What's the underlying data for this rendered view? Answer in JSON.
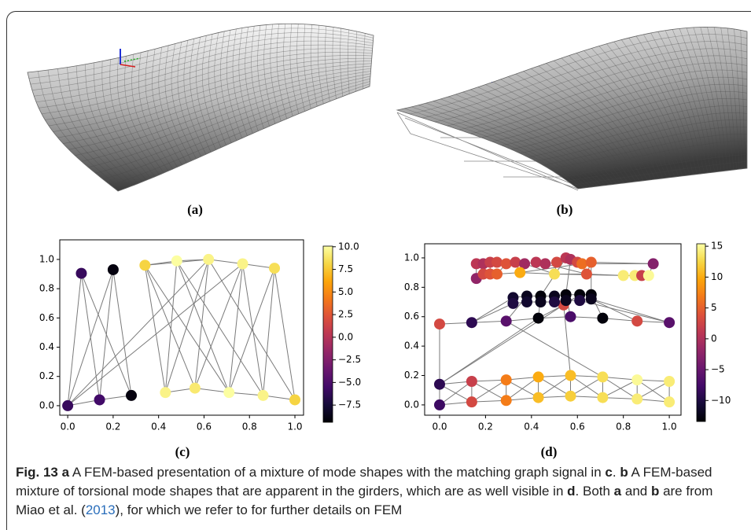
{
  "panels": {
    "a": {
      "label": "(a)"
    },
    "b": {
      "label": "(b)"
    }
  },
  "chart_data": [
    {
      "type": "graph",
      "label": "(c)",
      "x": [
        0.0,
        0.06,
        0.2,
        0.14,
        0.28,
        0.34,
        0.48,
        0.62,
        0.77,
        0.91,
        0.43,
        0.56,
        0.71,
        0.86,
        1.0
      ],
      "y": [
        0.0,
        0.905,
        0.93,
        0.04,
        0.07,
        0.96,
        0.99,
        1.0,
        0.97,
        0.94,
        0.09,
        0.12,
        0.09,
        0.07,
        0.04
      ],
      "values": [
        -6,
        -6,
        -9,
        -5.5,
        -9,
        8,
        10,
        9.5,
        9.5,
        8.5,
        9.5,
        9,
        10,
        9.5,
        8
      ],
      "edges": [
        [
          0,
          1
        ],
        [
          0,
          2
        ],
        [
          0,
          3
        ],
        [
          3,
          4
        ],
        [
          1,
          3
        ],
        [
          1,
          4
        ],
        [
          2,
          3
        ],
        [
          2,
          4
        ],
        [
          0,
          7
        ],
        [
          0,
          8
        ],
        [
          5,
          6
        ],
        [
          5,
          7
        ],
        [
          6,
          7
        ],
        [
          7,
          8
        ],
        [
          8,
          9
        ],
        [
          5,
          10
        ],
        [
          5,
          11
        ],
        [
          5,
          12
        ],
        [
          6,
          10
        ],
        [
          6,
          12
        ],
        [
          6,
          13
        ],
        [
          7,
          10
        ],
        [
          7,
          11
        ],
        [
          7,
          14
        ],
        [
          8,
          11
        ],
        [
          8,
          12
        ],
        [
          8,
          13
        ],
        [
          9,
          12
        ],
        [
          9,
          14
        ],
        [
          9,
          13
        ],
        [
          10,
          11
        ],
        [
          11,
          12
        ],
        [
          12,
          13
        ],
        [
          13,
          14
        ]
      ],
      "xlim": [
        -0.035,
        1.038
      ],
      "ylim": [
        -0.065,
        1.134
      ],
      "xticks": [
        {
          "value": 0,
          "label": "0.0"
        },
        0.2,
        0.4,
        0.6,
        0.8,
        {
          "value": 1,
          "label": "1.0"
        }
      ],
      "yticks": [
        {
          "value": 0,
          "label": "0.0"
        },
        0.2,
        0.4,
        0.6,
        0.8,
        {
          "value": 1,
          "label": "1.0"
        }
      ],
      "colorbar": {
        "colormap": "inferno",
        "lim": [
          -9.4,
          10.07
        ],
        "ticks": [
          {
            "value": 10,
            "label": "10.0"
          },
          7.5,
          {
            "value": 5,
            "label": "5.0"
          },
          2.5,
          {
            "value": 0,
            "label": "0.0"
          },
          {
            "value": -2.5,
            "label": "−2.5"
          },
          {
            "value": -5,
            "label": "−5.0"
          },
          {
            "value": -7.5,
            "label": "−7.5"
          }
        ]
      }
    },
    {
      "type": "graph",
      "label": "(d)",
      "x": [
        0,
        0,
        0.14,
        0.14,
        0.29,
        0.29,
        0.43,
        0.43,
        0.57,
        0.57,
        0.71,
        0.71,
        0.86,
        0.86,
        1,
        1,
        0,
        0.14,
        0.29,
        0.43,
        0.57,
        0.71,
        0.86,
        1,
        0.54,
        0.32,
        0.32,
        0.38,
        0.38,
        0.44,
        0.44,
        0.5,
        0.5,
        0.55,
        0.55,
        0.61,
        0.61,
        0.66,
        0.66,
        0.16,
        0.19,
        0.22,
        0.25,
        0.29,
        0.33,
        0.37,
        0.42,
        0.46,
        0.51,
        0.55,
        0.57,
        0.6,
        0.62,
        0.66,
        0.93,
        0.16,
        0.19,
        0.22,
        0.25,
        0.35,
        0.5,
        0.64,
        0.8,
        0.85,
        0.88,
        0.91
      ],
      "y": [
        0,
        0.14,
        0.02,
        0.16,
        0.03,
        0.17,
        0.05,
        0.19,
        0.06,
        0.2,
        0.05,
        0.19,
        0.04,
        0.17,
        0.02,
        0.16,
        0.55,
        0.56,
        0.57,
        0.59,
        0.6,
        0.59,
        0.57,
        0.56,
        0.68,
        0.73,
        0.69,
        0.74,
        0.7,
        0.74,
        0.7,
        0.74,
        0.7,
        0.75,
        0.71,
        0.75,
        0.71,
        0.75,
        0.72,
        0.96,
        0.96,
        0.97,
        0.97,
        0.96,
        0.97,
        0.96,
        0.97,
        0.96,
        0.97,
        1.0,
        0.99,
        0.97,
        0.96,
        0.97,
        0.96,
        0.86,
        0.89,
        0.89,
        0.89,
        0.9,
        0.89,
        0.89,
        0.88,
        0.88,
        0.88,
        0.88
      ],
      "values": [
        -8,
        -9,
        3,
        2,
        7,
        7,
        11,
        10,
        12,
        11,
        13,
        13,
        14,
        15,
        14,
        14,
        3,
        -9,
        -6,
        -13,
        -7,
        -13,
        3,
        -6,
        3,
        -11,
        -10,
        -12,
        -11,
        -13,
        -12,
        -12,
        -10,
        -13,
        -12,
        -13,
        -10,
        -13,
        -12,
        1,
        0,
        2,
        3,
        4,
        2,
        -1,
        1,
        0,
        3,
        1,
        0,
        3,
        6,
        5,
        -3,
        -2,
        3,
        4,
        5,
        10,
        13,
        4,
        14,
        14,
        2,
        15
      ],
      "edges": [
        [
          0,
          1
        ],
        [
          0,
          2
        ],
        [
          0,
          3
        ],
        [
          1,
          2
        ],
        [
          1,
          3
        ],
        [
          2,
          3
        ],
        [
          2,
          4
        ],
        [
          3,
          5
        ],
        [
          2,
          5
        ],
        [
          3,
          4
        ],
        [
          4,
          5
        ],
        [
          4,
          6
        ],
        [
          5,
          7
        ],
        [
          4,
          7
        ],
        [
          5,
          6
        ],
        [
          6,
          7
        ],
        [
          6,
          8
        ],
        [
          7,
          9
        ],
        [
          6,
          9
        ],
        [
          7,
          8
        ],
        [
          8,
          9
        ],
        [
          8,
          10
        ],
        [
          9,
          11
        ],
        [
          8,
          11
        ],
        [
          9,
          10
        ],
        [
          10,
          11
        ],
        [
          10,
          12
        ],
        [
          11,
          13
        ],
        [
          10,
          13
        ],
        [
          11,
          12
        ],
        [
          12,
          13
        ],
        [
          12,
          14
        ],
        [
          13,
          15
        ],
        [
          12,
          15
        ],
        [
          13,
          14
        ],
        [
          14,
          15
        ],
        [
          16,
          17
        ],
        [
          17,
          18
        ],
        [
          18,
          19
        ],
        [
          19,
          20
        ],
        [
          20,
          21
        ],
        [
          21,
          22
        ],
        [
          22,
          23
        ],
        [
          16,
          1
        ],
        [
          18,
          11
        ],
        [
          24,
          9
        ],
        [
          19,
          1
        ],
        [
          24,
          1
        ],
        [
          17,
          25
        ],
        [
          18,
          27
        ],
        [
          19,
          29
        ],
        [
          20,
          33
        ],
        [
          21,
          37
        ],
        [
          22,
          38
        ],
        [
          23,
          38
        ],
        [
          17,
          26
        ],
        [
          23,
          36
        ],
        [
          24,
          35
        ],
        [
          24,
          19
        ],
        [
          25,
          26
        ],
        [
          27,
          28
        ],
        [
          29,
          30
        ],
        [
          31,
          32
        ],
        [
          33,
          34
        ],
        [
          35,
          36
        ],
        [
          37,
          38
        ],
        [
          25,
          27
        ],
        [
          27,
          29
        ],
        [
          29,
          31
        ],
        [
          31,
          33
        ],
        [
          33,
          35
        ],
        [
          35,
          37
        ],
        [
          26,
          28
        ],
        [
          28,
          30
        ],
        [
          30,
          32
        ],
        [
          32,
          34
        ],
        [
          34,
          36
        ],
        [
          36,
          38
        ],
        [
          29,
          49
        ],
        [
          33,
          50
        ],
        [
          37,
          53
        ],
        [
          39,
          40
        ],
        [
          40,
          41
        ],
        [
          41,
          42
        ],
        [
          42,
          43
        ],
        [
          43,
          44
        ],
        [
          44,
          45
        ],
        [
          45,
          46
        ],
        [
          46,
          47
        ],
        [
          47,
          48
        ],
        [
          48,
          49
        ],
        [
          49,
          50
        ],
        [
          50,
          51
        ],
        [
          51,
          52
        ],
        [
          52,
          53
        ],
        [
          55,
          56
        ],
        [
          56,
          57
        ],
        [
          57,
          58
        ],
        [
          58,
          59
        ],
        [
          59,
          60
        ],
        [
          60,
          61
        ],
        [
          39,
          55
        ],
        [
          41,
          57
        ],
        [
          43,
          58
        ],
        [
          44,
          59
        ],
        [
          48,
          60
        ],
        [
          52,
          61
        ],
        [
          53,
          61
        ],
        [
          61,
          62
        ],
        [
          62,
          63
        ],
        [
          63,
          64
        ],
        [
          64,
          65
        ],
        [
          54,
          65
        ],
        [
          53,
          54
        ],
        [
          52,
          54
        ],
        [
          60,
          62
        ],
        [
          59,
          52
        ],
        [
          47,
          61
        ],
        [
          45,
          60
        ]
      ],
      "xlim": [
        -0.065,
        1.051
      ],
      "ylim": [
        -0.07,
        1.096
      ],
      "xticks": [
        {
          "value": 0,
          "label": "0.0"
        },
        0.2,
        0.4,
        0.6,
        0.8,
        {
          "value": 1,
          "label": "1.0"
        }
      ],
      "yticks": [
        {
          "value": 0,
          "label": "0.0"
        },
        0.2,
        0.4,
        0.6,
        0.8,
        {
          "value": 1,
          "label": "1.0"
        }
      ],
      "colorbar": {
        "colormap": "inferno",
        "lim": [
          -13.4,
          15.4
        ],
        "ticks": [
          15,
          10,
          5,
          0,
          {
            "value": -5,
            "label": "−5"
          },
          {
            "value": -10,
            "label": "−10"
          }
        ]
      }
    }
  ],
  "caption": {
    "label": "Fig. 13",
    "parts": [
      "a",
      " A FEM-based presentation of a mixture of mode shapes with the matching graph signal in ",
      "c",
      ". ",
      "b",
      " A FEM-based mixture of torsional mode shapes that are apparent in the girders, which are as well visible in ",
      "d",
      ". Both ",
      "a",
      " and ",
      "b",
      " are from Miao et al. (",
      "2013",
      "), for which we refer to for further details on FEM"
    ]
  }
}
